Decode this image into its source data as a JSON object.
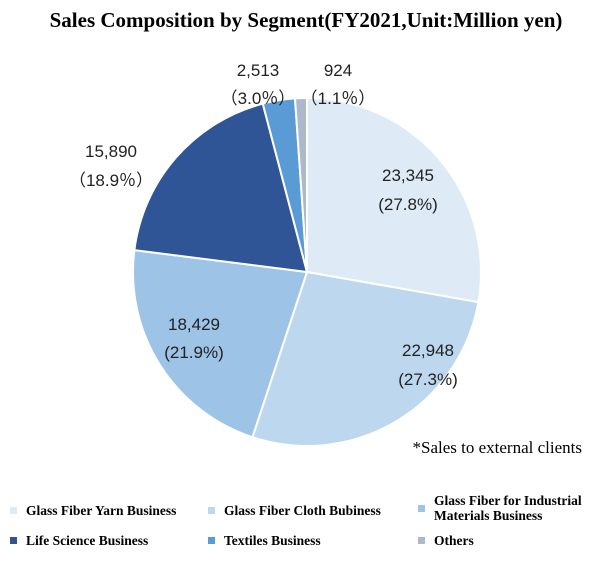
{
  "chart_data": {
    "type": "pie",
    "title": "Sales Composition by Segment(FY2021,Unit:Million yen)",
    "footnote": "*Sales to external clients",
    "slices": [
      {
        "name": "Glass Fiber Yarn Business",
        "value": 23345,
        "value_label": "23,345",
        "pct_label": "(27.8%)",
        "color": "#deebf7"
      },
      {
        "name": "Glass Fiber Cloth Bubiness",
        "value": 22948,
        "value_label": "22,948",
        "pct_label": "(27.3%)",
        "color": "#bdd7ee"
      },
      {
        "name": "Glass Fiber for Industrial Materials Business",
        "value": 18429,
        "value_label": "18,429",
        "pct_label": "(21.9%)",
        "color": "#9dc3e6"
      },
      {
        "name": "Life Science Business",
        "value": 15890,
        "value_label": "15,890",
        "pct_label": "（18.9％）",
        "color": "#2f5597"
      },
      {
        "name": "Textiles Business",
        "value": 2513,
        "value_label": "2,513",
        "pct_label": "（3.0％）",
        "color": "#5b9bd5"
      },
      {
        "name": "Others",
        "value": 924,
        "value_label": "924",
        "pct_label": "（1.1％）",
        "color": "#adb9ca"
      }
    ],
    "legend": [
      {
        "line1": "Glass Fiber Yarn Business",
        "line2": ""
      },
      {
        "line1": "Glass Fiber Cloth Bubiness",
        "line2": ""
      },
      {
        "line1": "Glass Fiber for Industrial",
        "line2": "Materials Business"
      },
      {
        "line1": "Life Science Business",
        "line2": ""
      },
      {
        "line1": "Textiles Business",
        "line2": ""
      },
      {
        "line1": "Others",
        "line2": ""
      }
    ],
    "legend_placement": "bottom"
  }
}
